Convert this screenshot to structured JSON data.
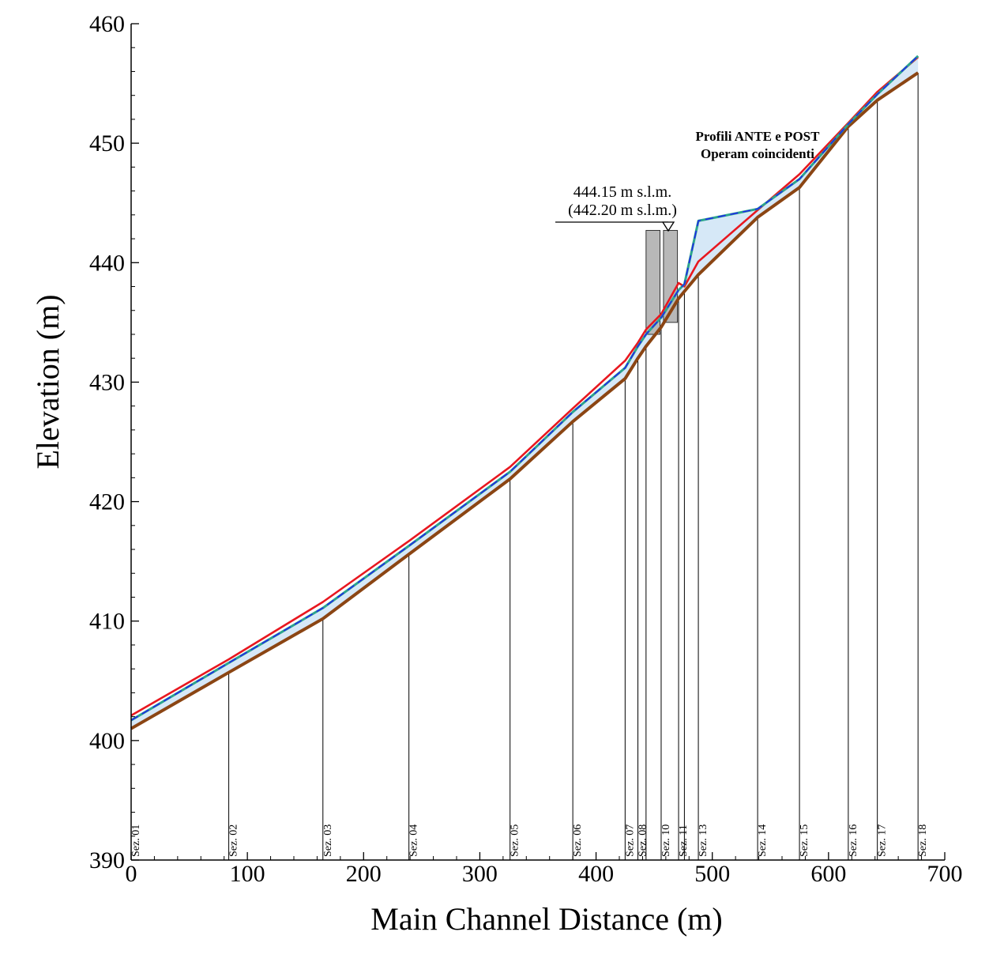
{
  "chart_data": {
    "type": "line",
    "xlabel": "Main Channel Distance (m)",
    "ylabel": "Elevation (m)",
    "xlim": [
      0,
      700
    ],
    "ylim": [
      390,
      460
    ],
    "xticks": [
      0,
      100,
      200,
      300,
      400,
      500,
      600,
      700
    ],
    "yticks": [
      390,
      400,
      410,
      420,
      430,
      440,
      450,
      460
    ],
    "sections": [
      {
        "name": "Sez. 01",
        "x": 0,
        "bed": 401.0
      },
      {
        "name": "Sez. 02",
        "x": 84,
        "bed": 405.7
      },
      {
        "name": "Sez. 03",
        "x": 165,
        "bed": 410.2
      },
      {
        "name": "Sez. 04",
        "x": 239,
        "bed": 415.6
      },
      {
        "name": "Sez. 05",
        "x": 326,
        "bed": 421.9
      },
      {
        "name": "Sez. 06",
        "x": 380,
        "bed": 426.7
      },
      {
        "name": "Sez. 07",
        "x": 425,
        "bed": 430.3
      },
      {
        "name": "Sez. 08",
        "x": 436,
        "bed": 432.0
      },
      {
        "name": "",
        "x": 443,
        "bed": 433.0
      },
      {
        "name": "Sez. 10",
        "x": 456,
        "bed": 434.6
      },
      {
        "name": "Sez. 11",
        "x": 471,
        "bed": 437.0
      },
      {
        "name": "",
        "x": 476,
        "bed": 437.6
      },
      {
        "name": "Sez. 13",
        "x": 488,
        "bed": 439.0
      },
      {
        "name": "Sez. 14",
        "x": 539,
        "bed": 443.8
      },
      {
        "name": "Sez. 15",
        "x": 575,
        "bed": 446.3
      },
      {
        "name": "Sez. 16",
        "x": 617,
        "bed": 451.4
      },
      {
        "name": "Sez. 17",
        "x": 642,
        "bed": 453.6
      },
      {
        "name": "Sez. 18",
        "x": 677,
        "bed": 455.9
      }
    ],
    "series": [
      {
        "color": "#8B4513",
        "points": [
          [
            0,
            401.0
          ],
          [
            84,
            405.7
          ],
          [
            165,
            410.2
          ],
          [
            239,
            415.6
          ],
          [
            326,
            421.9
          ],
          [
            380,
            426.7
          ],
          [
            425,
            430.3
          ],
          [
            436,
            432.0
          ],
          [
            443,
            433.0
          ],
          [
            456,
            434.6
          ],
          [
            471,
            437.0
          ],
          [
            476,
            437.6
          ],
          [
            488,
            439.0
          ],
          [
            539,
            443.8
          ],
          [
            575,
            446.3
          ],
          [
            617,
            451.4
          ],
          [
            642,
            453.6
          ],
          [
            677,
            455.9
          ]
        ]
      },
      {
        "color": "#2ca58d",
        "points": [
          [
            0,
            401.7
          ],
          [
            84,
            406.5
          ],
          [
            165,
            411.1
          ],
          [
            239,
            416.3
          ],
          [
            326,
            422.5
          ],
          [
            380,
            427.5
          ],
          [
            425,
            431.2
          ],
          [
            436,
            433.0
          ],
          [
            443,
            434.0
          ],
          [
            456,
            435.4
          ],
          [
            471,
            437.7
          ],
          [
            476,
            438.2
          ],
          [
            488,
            443.5
          ],
          [
            539,
            444.5
          ],
          [
            575,
            447.0
          ],
          [
            617,
            451.6
          ],
          [
            642,
            454.1
          ],
          [
            677,
            457.3
          ]
        ]
      },
      {
        "color": "#2222ee",
        "points": [
          [
            0,
            401.7
          ],
          [
            84,
            406.5
          ],
          [
            165,
            411.1
          ],
          [
            239,
            416.3
          ],
          [
            326,
            422.5
          ],
          [
            380,
            427.5
          ],
          [
            425,
            431.2
          ],
          [
            436,
            433.0
          ],
          [
            443,
            434.0
          ],
          [
            456,
            435.4
          ],
          [
            471,
            437.7
          ],
          [
            476,
            438.2
          ],
          [
            488,
            443.5
          ],
          [
            539,
            444.5
          ],
          [
            575,
            447.0
          ],
          [
            617,
            451.6
          ],
          [
            642,
            454.1
          ],
          [
            677,
            457.3
          ]
        ]
      },
      {
        "color": "#e8171f",
        "points": [
          [
            0,
            402.1
          ],
          [
            84,
            406.8
          ],
          [
            165,
            411.6
          ],
          [
            239,
            416.7
          ],
          [
            326,
            422.9
          ],
          [
            380,
            427.8
          ],
          [
            425,
            431.8
          ],
          [
            436,
            433.3
          ],
          [
            443,
            434.4
          ],
          [
            456,
            435.7
          ],
          [
            471,
            438.3
          ],
          [
            476,
            438.0
          ],
          [
            488,
            440.1
          ],
          [
            539,
            444.4
          ],
          [
            575,
            447.4
          ],
          [
            617,
            451.7
          ],
          [
            642,
            454.3
          ],
          [
            677,
            457.2
          ]
        ]
      }
    ],
    "structures": [
      {
        "x_start": 443,
        "x_end": 455,
        "bottom": 434.0,
        "top": 442.7
      },
      {
        "x_start": 458,
        "x_end": 470,
        "bottom": 435.0,
        "top": 442.7
      }
    ],
    "annotations": {
      "wse_line1": "444.15 m s.l.m.",
      "wse_line2": "(442.20 m s.l.m.)",
      "note_line1": "Profili ANTE e POST",
      "note_line2": "Operam coincidenti"
    },
    "colors": {
      "bed": "#8B4513",
      "water_fill": "#d6e8f7",
      "structure": "#b8b8b8"
    },
    "grid": false
  }
}
